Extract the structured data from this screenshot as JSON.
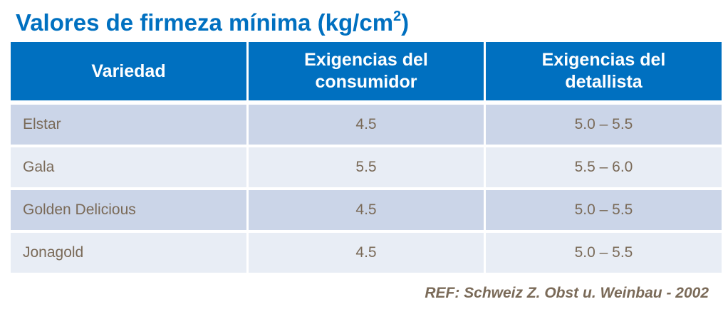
{
  "title": {
    "text": "Valores de firmeza mínima (kg/cm",
    "sup": "2",
    "close": ")"
  },
  "table": {
    "headers": [
      "Variedad",
      [
        "Exigencias del",
        "consumidor"
      ],
      [
        "Exigencias del",
        "detallista"
      ]
    ],
    "rows": [
      [
        "Elstar",
        "4.5",
        "5.0 – 5.5"
      ],
      [
        "Gala",
        "5.5",
        "5.5 – 6.0"
      ],
      [
        "Golden Delicious",
        "4.5",
        "5.0 – 5.5"
      ],
      [
        "Jonagold",
        "4.5",
        "5.0 – 5.5"
      ]
    ]
  },
  "reference": "REF: Schweiz Z. Obst u. Weinbau - 2002",
  "colors": {
    "header": "#0070C0",
    "row_odd": "#CBD5E8",
    "row_even": "#E8EDF5",
    "text": "#7a6a58"
  }
}
